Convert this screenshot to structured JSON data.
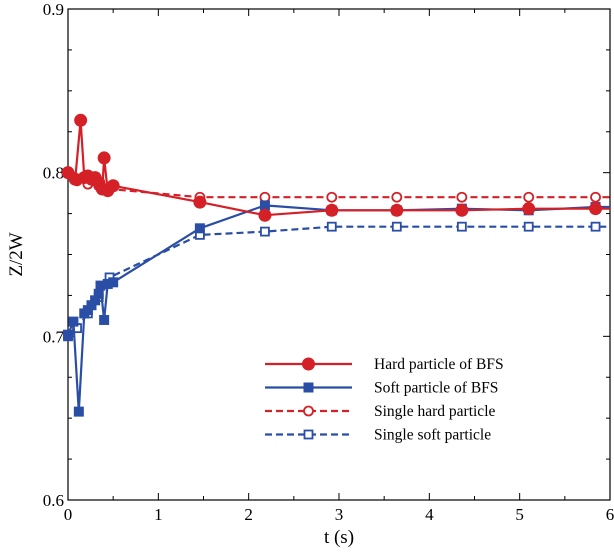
{
  "chart_data": {
    "type": "line",
    "xlabel": "t (s)",
    "ylabel": "Z/2W",
    "xlim": [
      0,
      6
    ],
    "ylim": [
      0.6,
      0.9
    ],
    "x_ticks": [
      0,
      1,
      2,
      3,
      4,
      5,
      6
    ],
    "x_tick_labels": [
      "0",
      "1",
      "2",
      "3",
      "4",
      "5",
      "6"
    ],
    "y_ticks": [
      0.6,
      0.7,
      0.8,
      0.9
    ],
    "y_tick_labels": [
      "0.6",
      "0.7",
      "0.8",
      "0.9"
    ],
    "grid": false,
    "legend_position": "bottom-right",
    "colors": {
      "red": "#d42027",
      "blue": "#2a4ea6"
    },
    "series": [
      {
        "name": "Hard particle of BFS",
        "color": "#d42027",
        "line": "solid",
        "marker": "filled-circle",
        "points": [
          [
            0.0,
            0.8
          ],
          [
            0.08,
            0.796
          ],
          [
            0.14,
            0.832
          ],
          [
            0.18,
            0.797
          ],
          [
            0.22,
            0.798
          ],
          [
            0.26,
            0.796
          ],
          [
            0.3,
            0.797
          ],
          [
            0.34,
            0.794
          ],
          [
            0.38,
            0.79
          ],
          [
            0.4,
            0.809
          ],
          [
            0.44,
            0.789
          ],
          [
            0.5,
            0.792
          ],
          [
            1.46,
            0.782
          ],
          [
            2.18,
            0.774
          ],
          [
            2.92,
            0.777
          ],
          [
            3.64,
            0.777
          ],
          [
            4.36,
            0.777
          ],
          [
            5.1,
            0.778
          ],
          [
            5.84,
            0.778
          ],
          [
            6.0,
            0.778
          ]
        ]
      },
      {
        "name": "Soft particle of BFS",
        "color": "#2a4ea6",
        "line": "solid",
        "marker": "filled-square",
        "points": [
          [
            0.0,
            0.701
          ],
          [
            0.06,
            0.709
          ],
          [
            0.12,
            0.654
          ],
          [
            0.18,
            0.714
          ],
          [
            0.22,
            0.716
          ],
          [
            0.26,
            0.719
          ],
          [
            0.3,
            0.722
          ],
          [
            0.34,
            0.726
          ],
          [
            0.36,
            0.731
          ],
          [
            0.4,
            0.71
          ],
          [
            0.44,
            0.732
          ],
          [
            0.5,
            0.733
          ],
          [
            1.46,
            0.766
          ],
          [
            2.18,
            0.78
          ],
          [
            2.92,
            0.777
          ],
          [
            3.64,
            0.777
          ],
          [
            4.36,
            0.778
          ],
          [
            5.1,
            0.777
          ],
          [
            5.84,
            0.779
          ],
          [
            6.0,
            0.779
          ]
        ]
      },
      {
        "name": "Single hard particle",
        "color": "#d42027",
        "line": "dashed",
        "marker": "open-circle",
        "points": [
          [
            0.0,
            0.8
          ],
          [
            0.1,
            0.795
          ],
          [
            0.22,
            0.793
          ],
          [
            0.34,
            0.792
          ],
          [
            0.46,
            0.79
          ],
          [
            1.46,
            0.785
          ],
          [
            2.18,
            0.785
          ],
          [
            2.92,
            0.785
          ],
          [
            3.64,
            0.785
          ],
          [
            4.36,
            0.785
          ],
          [
            5.1,
            0.785
          ],
          [
            5.84,
            0.785
          ],
          [
            6.0,
            0.785
          ]
        ]
      },
      {
        "name": "Single soft particle",
        "color": "#2a4ea6",
        "line": "dashed",
        "marker": "open-square",
        "points": [
          [
            0.0,
            0.7
          ],
          [
            0.1,
            0.705
          ],
          [
            0.22,
            0.714
          ],
          [
            0.34,
            0.724
          ],
          [
            0.46,
            0.736
          ],
          [
            1.46,
            0.762
          ],
          [
            2.18,
            0.764
          ],
          [
            2.92,
            0.767
          ],
          [
            3.64,
            0.767
          ],
          [
            4.36,
            0.767
          ],
          [
            5.1,
            0.767
          ],
          [
            5.84,
            0.767
          ],
          [
            6.0,
            0.767
          ]
        ]
      }
    ]
  }
}
